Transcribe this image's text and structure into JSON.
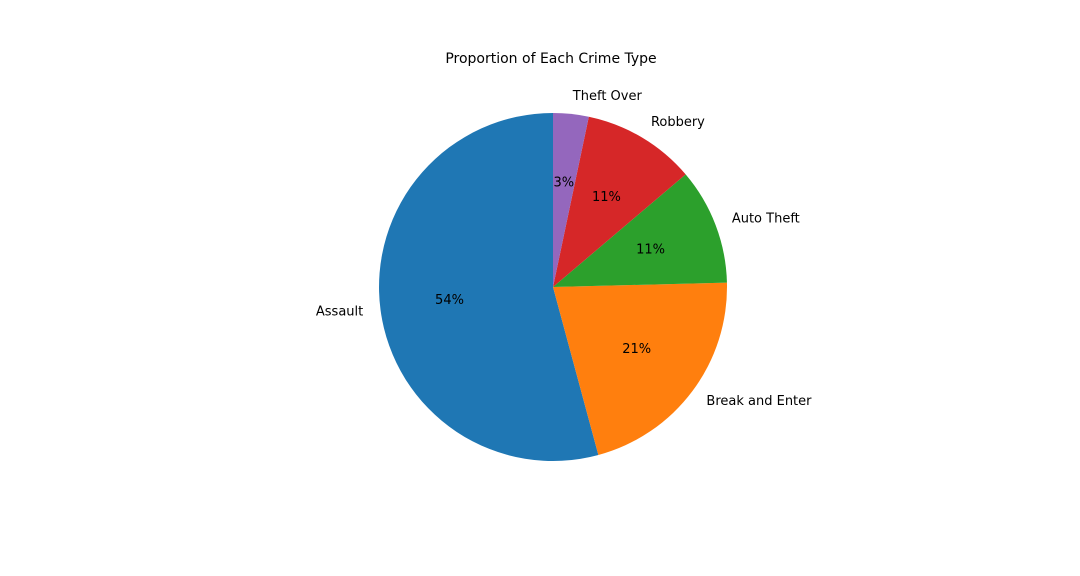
{
  "chart_data": {
    "type": "pie",
    "title": "Proportion of Each Crime Type",
    "categories": [
      "Assault",
      "Break and Enter",
      "Auto Theft",
      "Robbery",
      "Theft Over"
    ],
    "values": [
      54.2,
      21.2,
      10.8,
      10.5,
      3.3
    ],
    "percent_labels": [
      "54%",
      "21%",
      "11%",
      "11%",
      "3%"
    ],
    "colors": [
      "#1f77b4",
      "#ff7f0e",
      "#2ca02c",
      "#d62728",
      "#9467bd"
    ],
    "start_angle_deg": 90,
    "direction": "counterclockwise",
    "legend": "none"
  }
}
